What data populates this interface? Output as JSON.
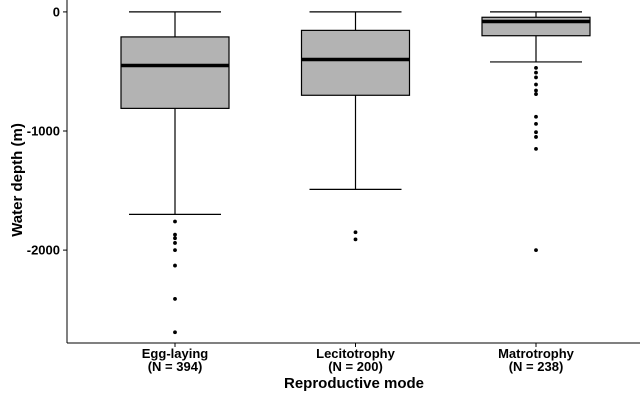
{
  "chart_data": {
    "type": "boxplot",
    "title": "",
    "xlabel": "Reproductive mode",
    "ylabel": "Water depth (m)",
    "ylim": [
      -2780,
      100
    ],
    "yticks": [
      0,
      -1000,
      -2000
    ],
    "ytick_labels": [
      "0",
      "-1000",
      "-2000"
    ],
    "grid": false,
    "box_color": "#b3b3b3",
    "categories": [
      {
        "label": "Egg-laying",
        "n_label": "(N = 394)",
        "whisker_high": 0,
        "q3": -210,
        "median": -450,
        "q1": -810,
        "whisker_low": -1700,
        "outliers": [
          -1760,
          -1870,
          -1900,
          -1940,
          -2000,
          -2130,
          -2410,
          -2690
        ]
      },
      {
        "label": "Lecitotrophy",
        "n_label": "(N = 200)",
        "whisker_high": 0,
        "q3": -155,
        "median": -400,
        "q1": -700,
        "whisker_low": -1490,
        "outliers": [
          -1850,
          -1910
        ]
      },
      {
        "label": "Matrotrophy",
        "n_label": "(N = 238)",
        "whisker_high": 0,
        "q3": -45,
        "median": -80,
        "q1": -200,
        "whisker_low": -420,
        "outliers": [
          -470,
          -510,
          -550,
          -610,
          -660,
          -690,
          -880,
          -940,
          -1010,
          -1050,
          -1150,
          -2000
        ]
      }
    ]
  }
}
